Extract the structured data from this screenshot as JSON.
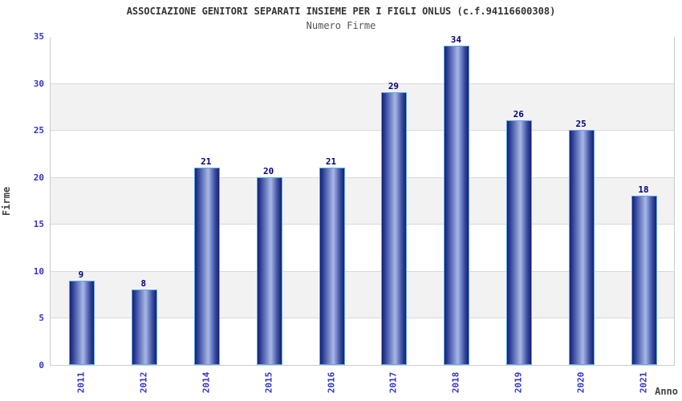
{
  "chart_data": {
    "type": "bar",
    "title": "ASSOCIAZIONE GENITORI SEPARATI INSIEME PER I FIGLI ONLUS (c.f.94116600308)",
    "subtitle": "Numero Firme",
    "xlabel": "Anno",
    "ylabel": "Firme",
    "categories": [
      "2011",
      "2012",
      "2014",
      "2015",
      "2016",
      "2017",
      "2018",
      "2019",
      "2020",
      "2021"
    ],
    "values": [
      9,
      8,
      21,
      20,
      21,
      29,
      34,
      26,
      25,
      18
    ],
    "ylim": [
      0,
      35
    ],
    "ytick_interval": 5,
    "ytick_labels": [
      "0",
      "5",
      "10",
      "15",
      "20",
      "25",
      "30",
      "35"
    ],
    "grid": "horizontal-lines-with-alternating-bands",
    "legend": "none",
    "colors": {
      "title": "#333333",
      "subtitle": "#555555",
      "axis_title": "#444444",
      "tick_label": "#3333cc",
      "value_label": "#000080",
      "band_gray": "#f2f2f2",
      "gridline": "#d9d9d9",
      "plot_border": "#cccccc",
      "bar_dark": "#141f73",
      "bar_mid": "#3d51a5",
      "bar_light": "#aab8e6",
      "bar_border": "#5fa8ea",
      "background": "#ffffff"
    }
  }
}
